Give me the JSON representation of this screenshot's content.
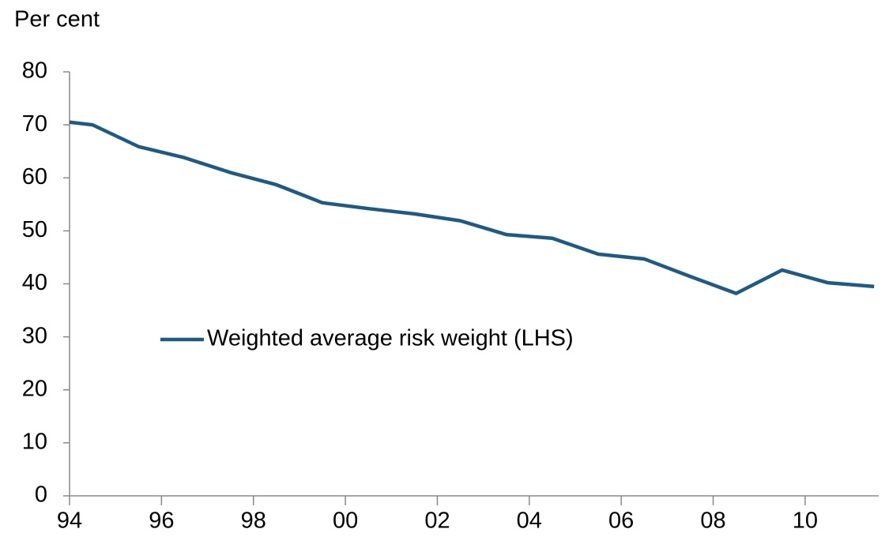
{
  "chart_data": {
    "type": "line",
    "y_axis_label": "Per cent",
    "x": [
      1994,
      1994.5,
      1995.5,
      1996.5,
      1997.5,
      1998.5,
      1999.5,
      2000.5,
      2001.5,
      2002.5,
      2003.5,
      2004.5,
      2005.5,
      2006.5,
      2007.5,
      2008.5,
      2009.5,
      2010.5,
      2011.5
    ],
    "series": [
      {
        "name": "Weighted average risk weight (LHS)",
        "color": "#1f5a85",
        "values": [
          70.5,
          70.0,
          65.9,
          63.8,
          61.0,
          58.7,
          55.3,
          54.2,
          53.2,
          51.9,
          49.3,
          48.6,
          45.6,
          44.7,
          41.4,
          38.2,
          42.6,
          40.2,
          39.5
        ]
      }
    ],
    "xlim": [
      1994,
      2011.6
    ],
    "xticks": [
      {
        "value": 1994,
        "label": "94"
      },
      {
        "value": 1996,
        "label": "96"
      },
      {
        "value": 1998,
        "label": "98"
      },
      {
        "value": 2000,
        "label": "00"
      },
      {
        "value": 2002,
        "label": "02"
      },
      {
        "value": 2004,
        "label": "04"
      },
      {
        "value": 2006,
        "label": "06"
      },
      {
        "value": 2008,
        "label": "08"
      },
      {
        "value": 2010,
        "label": "10"
      }
    ],
    "ylim": [
      0,
      80
    ],
    "yticks": [
      0,
      10,
      20,
      30,
      40,
      50,
      60,
      70,
      80
    ],
    "grid": false,
    "legend": "center-left"
  }
}
